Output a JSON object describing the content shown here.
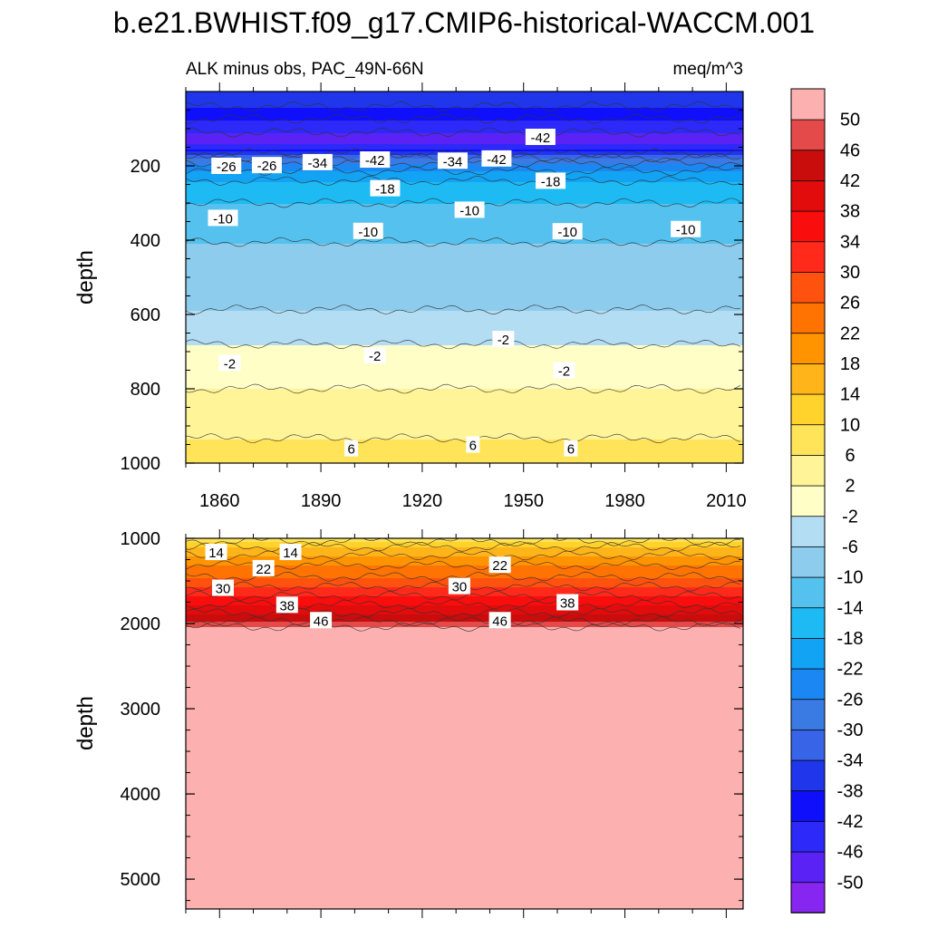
{
  "title": "b.e21.BWHIST.f09_g17.CMIP6-historical-WACCM.001",
  "colors": [
    "#8726f0",
    "#5a22f5",
    "#2c29f9",
    "#0f0ffb",
    "#1f36ea",
    "#3865e8",
    "#3a7ae3",
    "#1a87f2",
    "#12a3f4",
    "#1dbaf3",
    "#54c1ef",
    "#8dccec",
    "#b3ddf3",
    "#fffec7",
    "#fff497",
    "#ffe45a",
    "#ffd32c",
    "#ffb51a",
    "#ff9400",
    "#ff7302",
    "#ff520e",
    "#ff2a1a",
    "#f90d0d",
    "#e20c0c",
    "#c90c0c",
    "#e44a4a",
    "#fdb0b0"
  ],
  "colorbar": {
    "labels": [
      "-50",
      "-46",
      "-42",
      "-38",
      "-34",
      "-30",
      "-26",
      "-22",
      "-18",
      "-14",
      "-10",
      "-6",
      "-2",
      "2",
      "6",
      "10",
      "14",
      "18",
      "22",
      "26",
      "30",
      "34",
      "38",
      "42",
      "46",
      "50"
    ]
  },
  "chart_data": [
    {
      "type": "heatmap",
      "left_label": "ALK minus obs, PAC_49N-66N",
      "right_label": "meq/m^3",
      "ylabel": "depth",
      "xlabel": "",
      "xlim": [
        1850,
        2015
      ],
      "ylim": [
        1000,
        0
      ],
      "y_reversed": true,
      "xticks": [
        1860,
        1890,
        1920,
        1950,
        1980,
        2010
      ],
      "yticks": [
        200,
        400,
        600,
        800,
        1000
      ],
      "levels": [
        -50,
        -46,
        -42,
        -38,
        -34,
        -30,
        -26,
        -22,
        -18,
        -14,
        -10,
        -6,
        -2,
        2,
        6,
        10,
        14,
        18,
        22,
        26,
        30,
        34,
        38,
        42,
        46,
        50
      ],
      "depth_profile": [
        {
          "depth": 0,
          "value": -36
        },
        {
          "depth": 40,
          "value": -38
        },
        {
          "depth": 90,
          "value": -44
        },
        {
          "depth": 130,
          "value": -48
        },
        {
          "depth": 150,
          "value": -44
        },
        {
          "depth": 170,
          "value": -32
        },
        {
          "depth": 200,
          "value": -24
        },
        {
          "depth": 240,
          "value": -18
        },
        {
          "depth": 300,
          "value": -14
        },
        {
          "depth": 360,
          "value": -11
        },
        {
          "depth": 450,
          "value": -9
        },
        {
          "depth": 560,
          "value": -7
        },
        {
          "depth": 640,
          "value": -4
        },
        {
          "depth": 700,
          "value": -1
        },
        {
          "depth": 760,
          "value": 1
        },
        {
          "depth": 840,
          "value": 3
        },
        {
          "depth": 900,
          "value": 5
        },
        {
          "depth": 1000,
          "value": 8
        }
      ],
      "contour_labels": [
        {
          "text": "-26",
          "x": 1862,
          "y": 200
        },
        {
          "text": "-26",
          "x": 1874,
          "y": 198
        },
        {
          "text": "-34",
          "x": 1889,
          "y": 190
        },
        {
          "text": "-42",
          "x": 1906,
          "y": 183
        },
        {
          "text": "-34",
          "x": 1929,
          "y": 186
        },
        {
          "text": "-42",
          "x": 1942,
          "y": 180
        },
        {
          "text": "-42",
          "x": 1955,
          "y": 122
        },
        {
          "text": "-18",
          "x": 1909,
          "y": 260
        },
        {
          "text": "-18",
          "x": 1958,
          "y": 240
        },
        {
          "text": "-10",
          "x": 1861,
          "y": 340
        },
        {
          "text": "-10",
          "x": 1904,
          "y": 375
        },
        {
          "text": "-10",
          "x": 1934,
          "y": 318
        },
        {
          "text": "-10",
          "x": 1963,
          "y": 376
        },
        {
          "text": "-10",
          "x": 1998,
          "y": 370
        },
        {
          "text": "-2",
          "x": 1863,
          "y": 730
        },
        {
          "text": "-2",
          "x": 1906,
          "y": 710
        },
        {
          "text": "-2",
          "x": 1944,
          "y": 666
        },
        {
          "text": "-2",
          "x": 1962,
          "y": 750
        },
        {
          "text": "6",
          "x": 1899,
          "y": 960
        },
        {
          "text": "6",
          "x": 1935,
          "y": 950
        },
        {
          "text": "6",
          "x": 1964,
          "y": 960
        }
      ]
    },
    {
      "type": "heatmap",
      "ylabel": "depth",
      "xlabel": "",
      "xlim": [
        1850,
        2015
      ],
      "ylim": [
        5350,
        1000
      ],
      "y_reversed": true,
      "yticks": [
        1000,
        2000,
        3000,
        4000,
        5000
      ],
      "levels": [
        -50,
        -46,
        -42,
        -38,
        -34,
        -30,
        -26,
        -22,
        -18,
        -14,
        -10,
        -6,
        -2,
        2,
        6,
        10,
        14,
        18,
        22,
        26,
        30,
        34,
        38,
        42,
        46,
        50
      ],
      "depth_profile": [
        {
          "depth": 1000,
          "value": 8
        },
        {
          "depth": 1100,
          "value": 14
        },
        {
          "depth": 1250,
          "value": 20
        },
        {
          "depth": 1450,
          "value": 26
        },
        {
          "depth": 1650,
          "value": 33
        },
        {
          "depth": 1850,
          "value": 41
        },
        {
          "depth": 2000,
          "value": 47
        },
        {
          "depth": 2060,
          "value": 52
        },
        {
          "depth": 5350,
          "value": 52
        }
      ],
      "contour_labels": [
        {
          "text": "14",
          "x": 1859,
          "y": 1160
        },
        {
          "text": "14",
          "x": 1881,
          "y": 1160
        },
        {
          "text": "22",
          "x": 1873,
          "y": 1350
        },
        {
          "text": "22",
          "x": 1943,
          "y": 1310
        },
        {
          "text": "30",
          "x": 1861,
          "y": 1580
        },
        {
          "text": "30",
          "x": 1931,
          "y": 1560
        },
        {
          "text": "38",
          "x": 1880,
          "y": 1780
        },
        {
          "text": "38",
          "x": 1963,
          "y": 1750
        },
        {
          "text": "46",
          "x": 1890,
          "y": 1960
        },
        {
          "text": "46",
          "x": 1943,
          "y": 1960
        }
      ]
    }
  ]
}
